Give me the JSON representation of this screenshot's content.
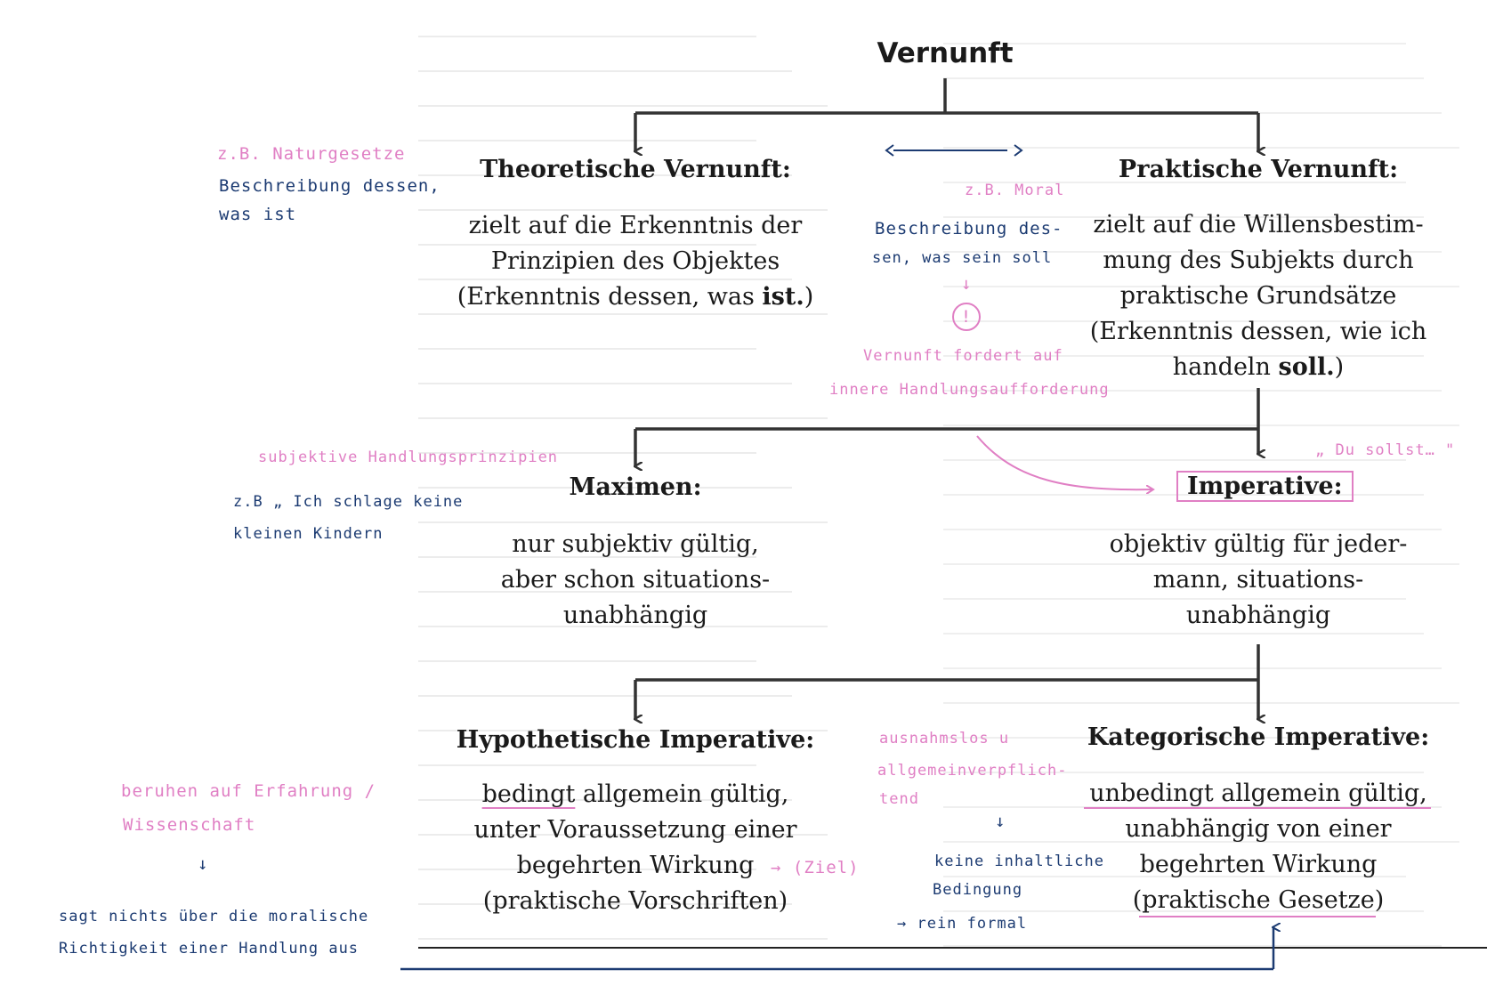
{
  "title": "Vernunft",
  "theoretical": {
    "heading": "Theoretische Vernunft:",
    "lines": [
      "zielt auf die Erkenntnis der",
      "Prinzipien des Objektes"
    ],
    "last_pre": "(Erkenntnis dessen, was ",
    "last_bold": "ist.",
    "last_post": ")"
  },
  "practical": {
    "heading": "Praktische Vernunft:",
    "lines": [
      "zielt auf die Willensbestim-",
      "mung des Subjekts durch",
      "praktische Grundsätze",
      "(Erkenntnis dessen, wie ich"
    ],
    "last_pre": "handeln ",
    "last_bold": "soll.",
    "last_post": ")"
  },
  "maximen": {
    "heading": "Maximen:",
    "lines": [
      "nur subjektiv gültig,",
      "aber schon situations-",
      "unabhängig"
    ]
  },
  "imperative": {
    "heading": "Imperative:",
    "lines": [
      "objektiv gültig für jeder-",
      "mann, situations-",
      "unabhängig"
    ]
  },
  "hypothetical": {
    "heading": "Hypothetische Imperative:",
    "first_underlined": "bedingt",
    "first_rest": " allgemein gültig,",
    "lines": [
      "unter Voraussetzung einer",
      "begehrten Wirkung",
      "(praktische Vorschriften)"
    ]
  },
  "categorical": {
    "heading": "Kategorische Imperative:",
    "lines": [
      "unbedingt allgemein gültig,",
      "unabhängig von einer",
      "begehrten Wirkung",
      "(praktische Gesetze)"
    ]
  },
  "notes": {
    "naturgesetze": "z.B. Naturgesetze",
    "beschreibung_ist_1": "Beschreibung dessen,",
    "beschreibung_ist_2": "was ist",
    "moral": "z.B. Moral",
    "beschreibung_soll_1": "Beschreibung des-",
    "beschreibung_soll_2": "sen, was sein soll",
    "arrow_down": "↓",
    "exclaim": "!",
    "vernunft_fordert": "Vernunft fordert auf",
    "innere": "innere Handlungsaufforderung",
    "subjektive": "subjektive Handlungsprinzipien",
    "beispiel_1": "z.B „ Ich schlage keine",
    "beispiel_2": "kleinen Kindern",
    "du_sollst": "„ Du sollst… \"",
    "erfahrung_1": "beruhen auf Erfahrung /",
    "erfahrung_2": "Wissenschaft",
    "sagt_1": "sagt nichts über die moralische",
    "sagt_2": "Richtigkeit einer Handlung aus",
    "ziel": "→ (Ziel)",
    "ausnahmslos_1": "ausnahmslos u",
    "ausnahmslos_2": "allgemeinverpflich-",
    "ausnahmslos_3": "tend",
    "keine_1": "keine inhaltliche",
    "keine_2": "Bedingung",
    "rein": "→ rein formal"
  },
  "colors": {
    "ink": "#1a1a1a",
    "pink": "#e07fc4",
    "blue": "#1c3b72",
    "ghost": "#d9d9d9"
  }
}
